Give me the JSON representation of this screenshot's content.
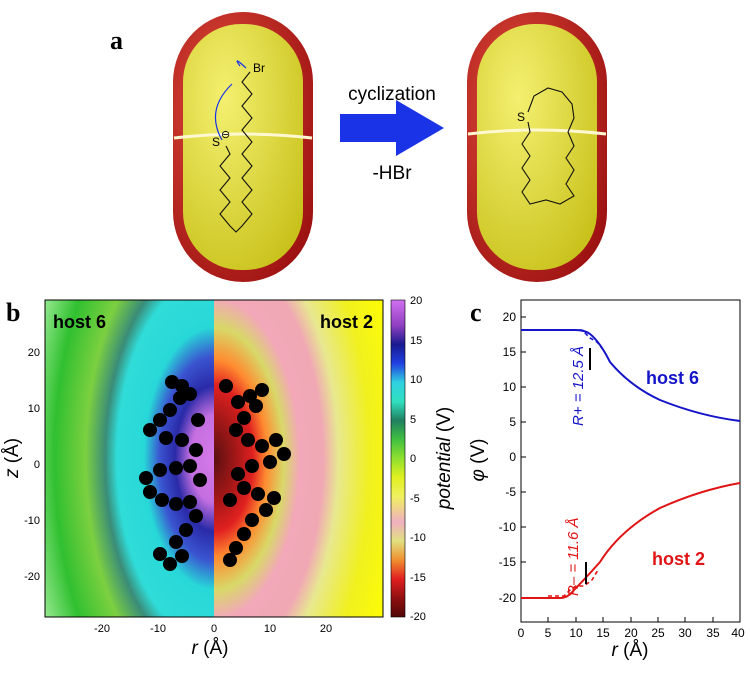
{
  "panel_a": {
    "letter": "a",
    "arrow_top_label": "cyclization",
    "arrow_bottom_label": "-HBr",
    "left_molecule": {
      "bromine": "Br",
      "sulfur": "S",
      "charge": "⊖"
    },
    "right_molecule": {
      "sulfur": "S"
    },
    "colors": {
      "capsule_outer": "#c8231f",
      "capsule_inner": "#e8e03a",
      "arrow": "#1a33e6"
    }
  },
  "panel_b": {
    "letter": "b",
    "left_label": "host 6",
    "right_label": "host 2",
    "xlabel_var": "r",
    "xlabel_unit": " (Å)",
    "ylabel_var": "z",
    "ylabel_unit": " (Å)",
    "colorbar_label_var": "potential",
    "colorbar_label_unit": " (V)",
    "x_ticks": [
      "-20",
      "-10",
      "0",
      "10",
      "20"
    ],
    "y_ticks": [
      "20",
      "10",
      "0",
      "-10",
      "-20"
    ],
    "colorbar_ticks": [
      "20",
      "15",
      "10",
      "5",
      "0",
      "-5",
      "-10",
      "-15",
      "-20"
    ]
  },
  "panel_c": {
    "letter": "c",
    "label_host6": "host 6",
    "label_host2": "host 2",
    "r_plus_label": "R+ = 12.5 Å",
    "r_minus_label": "R– = 11.6 Å",
    "xlabel_var": "r",
    "xlabel_unit": " (Å)",
    "ylabel_var": "φ",
    "ylabel_unit": " (V)",
    "x_ticks": [
      "0",
      "5",
      "10",
      "15",
      "20",
      "25",
      "30",
      "35",
      "40"
    ],
    "y_ticks": [
      "20",
      "15",
      "10",
      "5",
      "0",
      "-5",
      "-10",
      "-15",
      "-20"
    ],
    "colors": {
      "host6": "#1414c8",
      "host2": "#e01414"
    }
  }
}
